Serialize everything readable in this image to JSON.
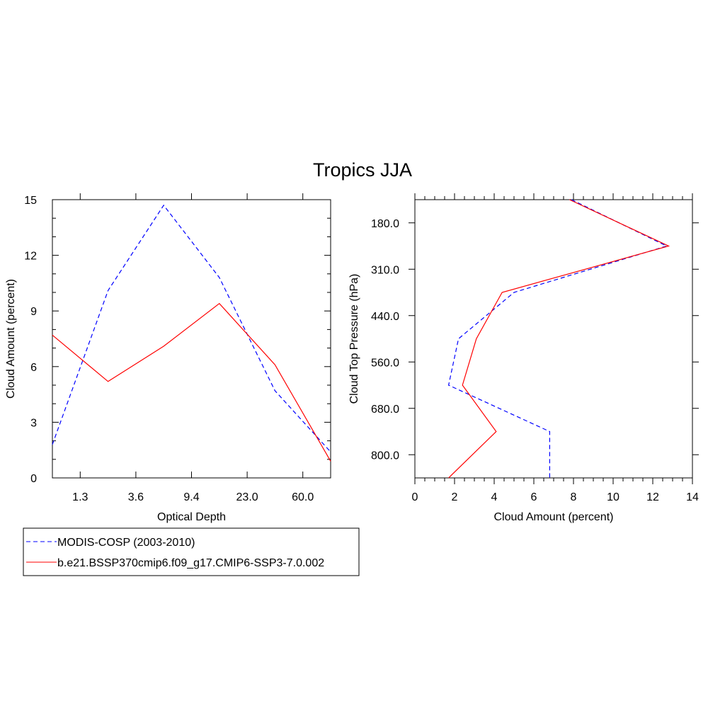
{
  "title": "Tropics JJA",
  "legend": {
    "placement": "bottom-left",
    "entries": [
      {
        "label": "MODIS-COSP (2003-2010)",
        "color": "#0000ff",
        "dash": true
      },
      {
        "label": "b.e21.BSSP370cmip6.f09_g17.CMIP6-SSP3-7.0.002",
        "color": "#ff0000",
        "dash": false
      }
    ]
  },
  "chart_data": [
    {
      "type": "line",
      "xlabel": "Optical Depth",
      "ylabel": "Cloud Amount (percent)",
      "ylim": [
        0,
        15
      ],
      "yticks": [
        "0",
        "3",
        "6",
        "9",
        "12",
        "15"
      ],
      "xtick_labels": [
        "1.3",
        "3.6",
        "9.4",
        "23.0",
        "60.0"
      ],
      "series": [
        {
          "name": "MODIS-COSP (2003-2010)",
          "color": "#0000ff",
          "dash": true,
          "values": [
            1.8,
            10.1,
            14.7,
            10.8,
            4.7,
            1.4
          ]
        },
        {
          "name": "b.e21.BSSP370cmip6.f09_g17.CMIP6-SSP3-7.0.002",
          "color": "#ff0000",
          "dash": false,
          "values": [
            7.7,
            5.2,
            7.1,
            9.4,
            6.1,
            0.9
          ]
        }
      ]
    },
    {
      "type": "line",
      "xlabel": "Cloud Amount (percent)",
      "ylabel": "Cloud Top Pressure (hPa)",
      "xlim": [
        0,
        14
      ],
      "xticks": [
        "0",
        "2",
        "4",
        "6",
        "8",
        "10",
        "12",
        "14"
      ],
      "ytick_labels": [
        "180.0",
        "310.0",
        "440.0",
        "560.0",
        "680.0",
        "800.0"
      ],
      "series": [
        {
          "name": "MODIS-COSP (2003-2010)",
          "color": "#0000ff",
          "dash": true,
          "values": [
            7.9,
            12.7,
            5.0,
            2.2,
            1.7,
            6.8,
            6.8
          ]
        },
        {
          "name": "b.e21.BSSP370cmip6.f09_g17.CMIP6-SSP3-7.0.002",
          "color": "#ff0000",
          "dash": false,
          "values": [
            7.8,
            12.8,
            4.4,
            3.1,
            2.4,
            4.1,
            1.7
          ]
        }
      ]
    }
  ]
}
